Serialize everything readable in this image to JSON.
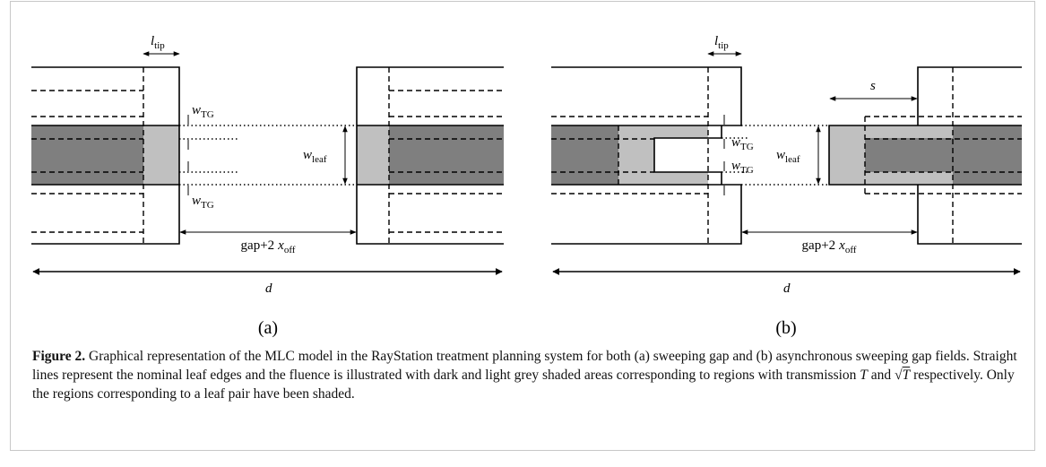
{
  "panels": [
    {
      "tag": "(a)",
      "labels": {
        "l_tip": {
          "var": "l",
          "sub": "tip"
        },
        "w_tg_top": {
          "var": "w",
          "sub": "TG"
        },
        "w_tg_bottom": {
          "var": "w",
          "sub": "TG"
        },
        "w_leaf": {
          "var": "w",
          "sub": "leaf"
        },
        "gap": {
          "pre": "gap+2",
          "var": "x",
          "sub": "off"
        },
        "d": {
          "var": "d"
        }
      }
    },
    {
      "tag": "(b)",
      "labels": {
        "l_tip": {
          "var": "l",
          "sub": "tip"
        },
        "s": {
          "var": "s"
        },
        "w_tg_top": {
          "var": "w",
          "sub": "TG"
        },
        "w_tg_bottom": {
          "var": "w",
          "sub": "TG"
        },
        "w_leaf": {
          "var": "w",
          "sub": "leaf"
        },
        "gap": {
          "pre": "gap+2",
          "var": "x",
          "sub": "off"
        },
        "d": {
          "var": "d"
        }
      }
    }
  ],
  "caption": {
    "label": "Figure 2.",
    "parts": [
      " Graphical representation of the MLC model in the RayStation treatment planning system for both (a) sweeping gap and (b) asynchronous sweeping gap fields. Straight lines represent the nominal leaf edges and the fluence is illustrated with dark and light grey shaded areas corresponding to regions with transmission ",
      "T",
      " and ",
      "T",
      " respectively. Only the regions corresponding to a leaf pair have been shaded."
    ]
  }
}
